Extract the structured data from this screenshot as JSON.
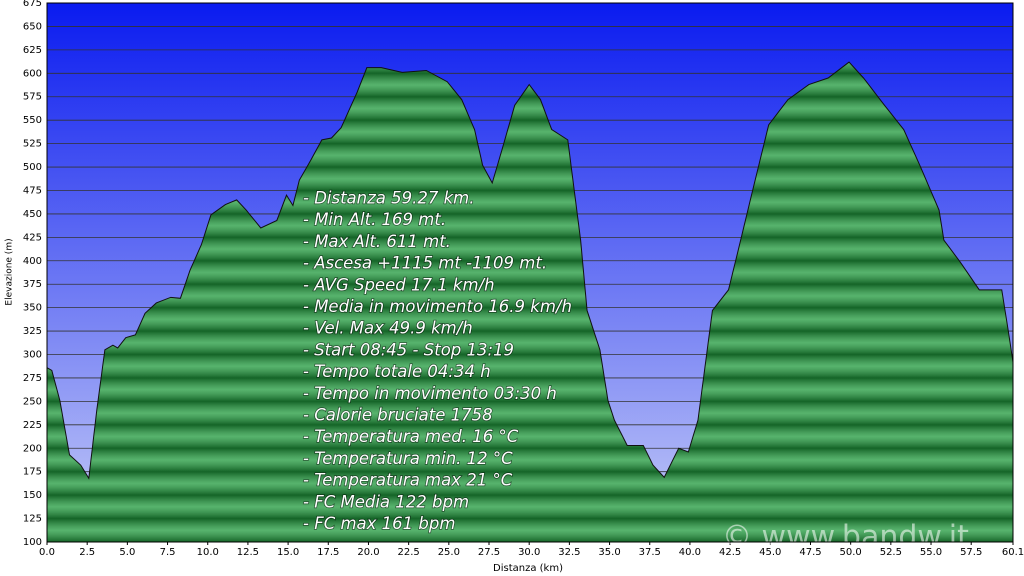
{
  "chart_data": {
    "type": "area",
    "x_label": "Distanza  (km)",
    "y_label": "Elevazione (m)",
    "color": "#1f9a3c",
    "grid": true,
    "xlim": [
      0,
      60.1
    ],
    "ylim": [
      100,
      675
    ],
    "xticks": [
      {
        "value": 0,
        "label": "0.0"
      },
      {
        "value": 2.5,
        "label": "2.5"
      },
      {
        "value": 5,
        "label": "5.0"
      },
      {
        "value": 7.5,
        "label": "7.5"
      },
      {
        "value": 10,
        "label": "10.0"
      },
      {
        "value": 12.5,
        "label": "12.5"
      },
      {
        "value": 15,
        "label": "15.0"
      },
      {
        "value": 17.5,
        "label": "17.5"
      },
      {
        "value": 20,
        "label": "20.0"
      },
      {
        "value": 22.5,
        "label": "22.5"
      },
      {
        "value": 25,
        "label": "25.0"
      },
      {
        "value": 27.5,
        "label": "27.5"
      },
      {
        "value": 30,
        "label": "30.0"
      },
      {
        "value": 32.5,
        "label": "32.5"
      },
      {
        "value": 35,
        "label": "35.0"
      },
      {
        "value": 37.5,
        "label": "37.5"
      },
      {
        "value": 40,
        "label": "40.0"
      },
      {
        "value": 42.5,
        "label": "42.5"
      },
      {
        "value": 45,
        "label": "45.0"
      },
      {
        "value": 47.5,
        "label": "47.5"
      },
      {
        "value": 50,
        "label": "50.0"
      },
      {
        "value": 52.5,
        "label": "52.5"
      },
      {
        "value": 55,
        "label": "55.0"
      },
      {
        "value": 57.5,
        "label": "57.5"
      },
      60.1
    ],
    "yticks": [
      100,
      125,
      150,
      175,
      200,
      225,
      250,
      275,
      300,
      325,
      350,
      375,
      400,
      425,
      450,
      475,
      500,
      525,
      550,
      575,
      600,
      625,
      650,
      675
    ],
    "x": [
      0,
      0.3,
      0.8,
      1.4,
      2.1,
      2.6,
      3.1,
      3.6,
      4.1,
      4.4,
      4.9,
      5.5,
      6.1,
      6.8,
      7.7,
      8.3,
      8.9,
      9.6,
      10.2,
      11.1,
      11.8,
      12.4,
      13.3,
      14.3,
      14.9,
      15.3,
      15.7,
      16.4,
      17.1,
      17.7,
      18.3,
      19.3,
      19.9,
      20.8,
      22.1,
      23.6,
      24.9,
      25.8,
      26.6,
      27.1,
      27.7,
      28.3,
      29.1,
      30.0,
      30.7,
      31.4,
      32.4,
      33.2,
      33.6,
      34.4,
      34.9,
      35.3,
      36.1,
      37.1,
      37.7,
      38.4,
      39.3,
      39.9,
      40.5,
      41.4,
      42.4,
      43.0,
      43.9,
      44.9,
      46.1,
      47.4,
      48.6,
      49.9,
      50.8,
      52.1,
      53.3,
      54.3,
      55.5,
      55.8,
      56.8,
      58.0,
      59.4,
      59.8,
      60.1
    ],
    "values": [
      286,
      283,
      251,
      193,
      182,
      168,
      241,
      305,
      310,
      307,
      318,
      321,
      344,
      355,
      361,
      360,
      390,
      417,
      449,
      460,
      465,
      454,
      435,
      443,
      470,
      459,
      486,
      507,
      529,
      531,
      542,
      580,
      606,
      606,
      601,
      603,
      591,
      572,
      540,
      502,
      483,
      518,
      566,
      588,
      572,
      540,
      529,
      422,
      347,
      305,
      251,
      230,
      203,
      203,
      182,
      169,
      200,
      196,
      230,
      347,
      369,
      411,
      475,
      545,
      572,
      588,
      595,
      612,
      595,
      566,
      540,
      502,
      454,
      422,
      399,
      369,
      369,
      326,
      292
    ],
    "annotations": [
      "- Distanza 59.27 km.",
      "- Min Alt. 169 mt.",
      "- Max Alt. 611 mt.",
      "- Ascesa +1115 mt -1109 mt.",
      "- AVG Speed 17.1 km/h",
      "- Media in movimento 16.9 km/h",
      "- Vel. Max 49.9 km/h",
      "- Start 08:45 - Stop 13:19",
      "- Tempo totale 04:34 h",
      "- Tempo in movimento 03:30 h",
      "- Calorie bruciate 1758",
      "- Temperatura med. 16 °C",
      "- Temperatura min. 12 °C",
      "- Temperatura max 21 °C",
      "- FC Media 122 bpm",
      "- FC max 161 bpm"
    ],
    "watermark": "© www.bandw.it"
  }
}
